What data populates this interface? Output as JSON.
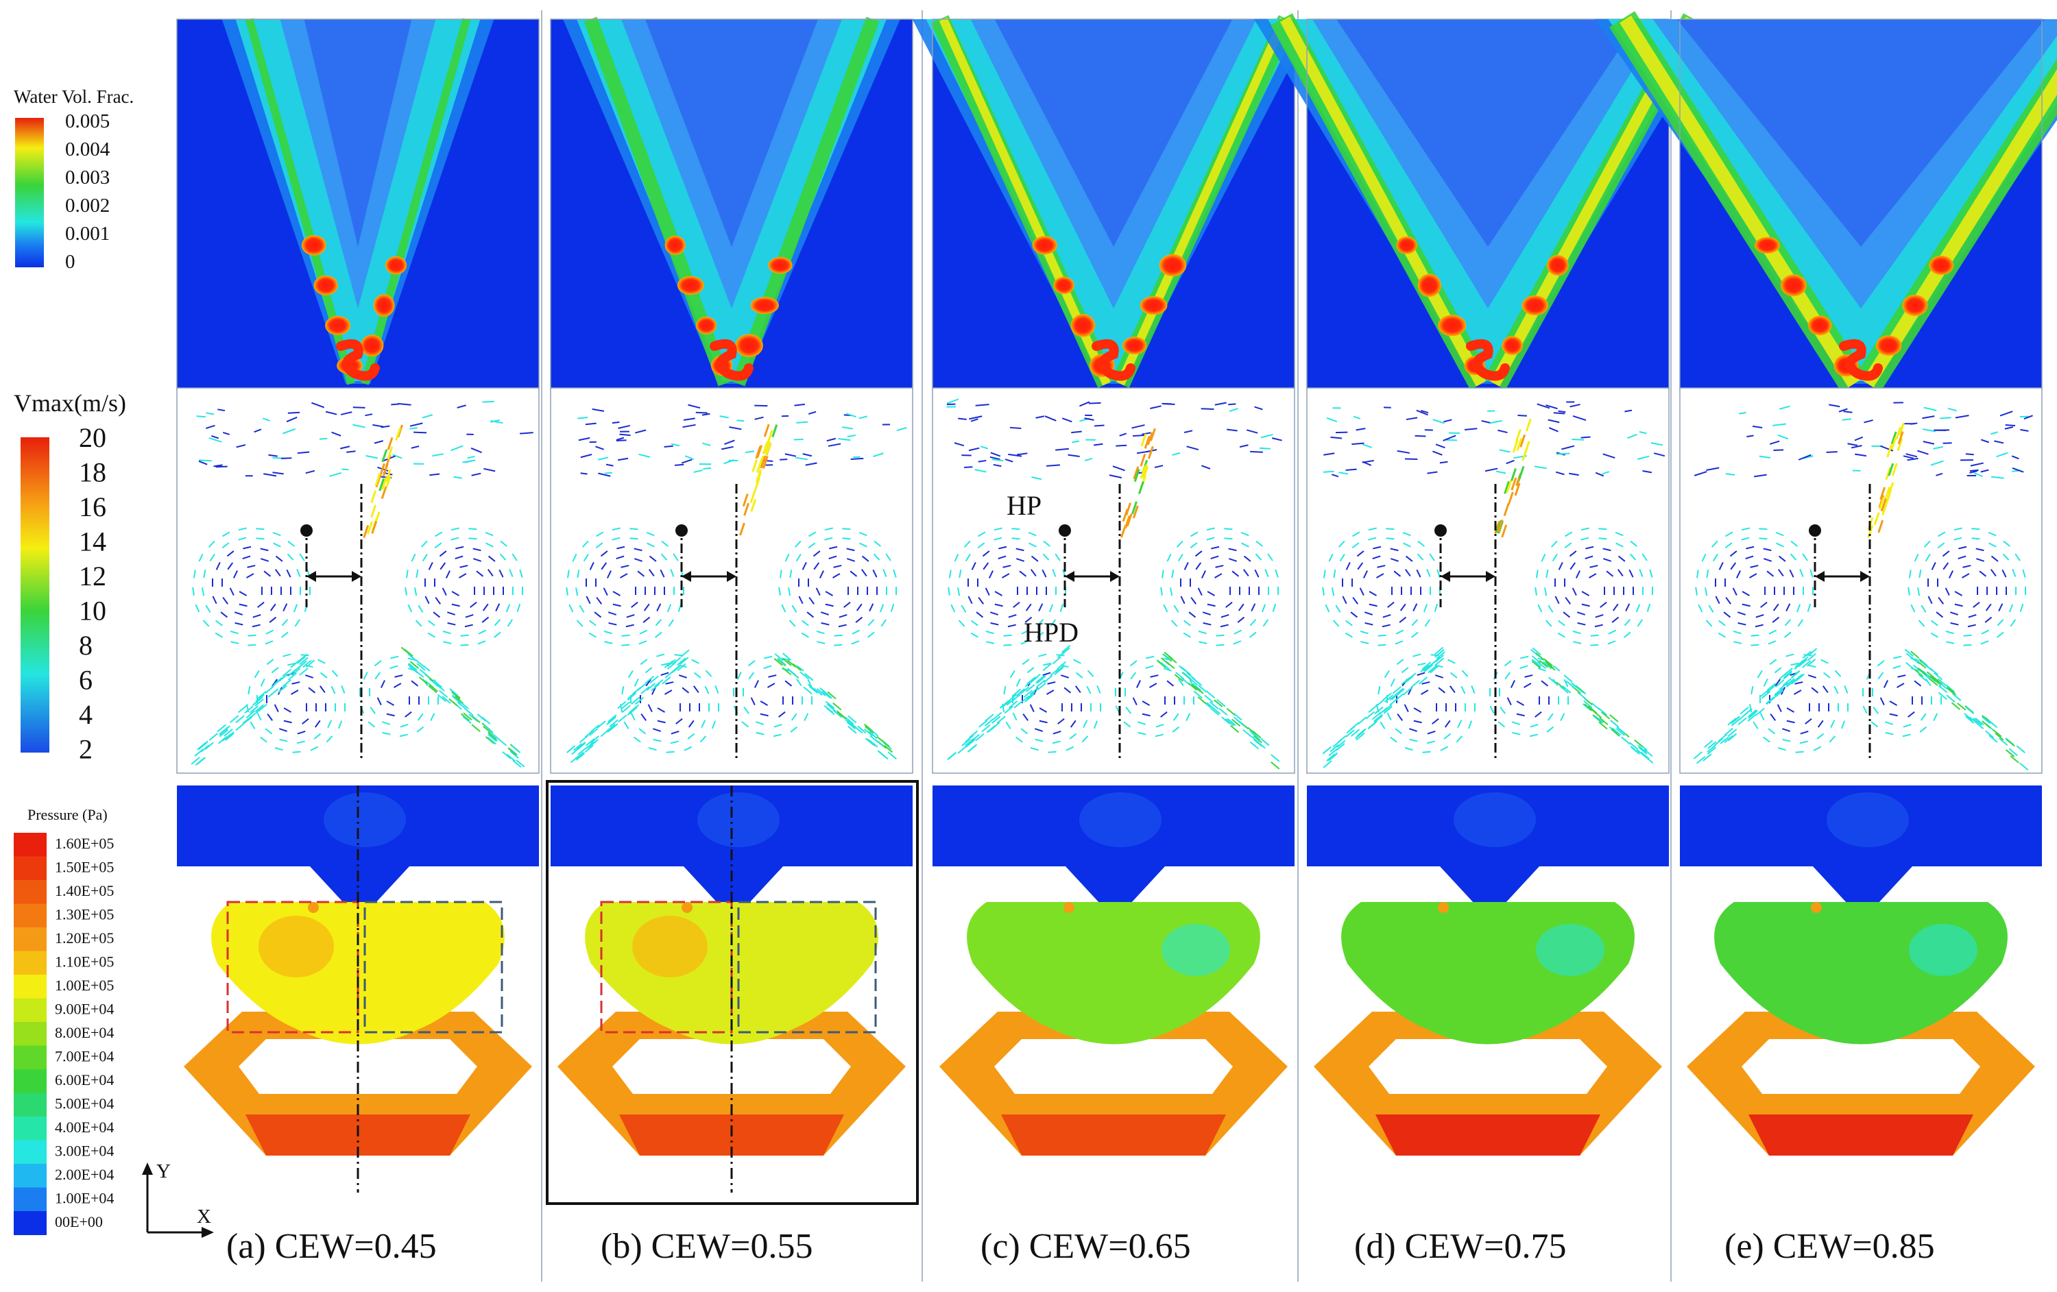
{
  "legends": {
    "water": {
      "title": "Water Vol. Frac.",
      "ticks": [
        "0.005",
        "0.004",
        "0.003",
        "0.002",
        "0.001",
        "0"
      ]
    },
    "velocity": {
      "title": "Vmax(m/s)",
      "ticks": [
        "20",
        "18",
        "16",
        "14",
        "12",
        "10",
        "8",
        "6",
        "4",
        "2"
      ]
    },
    "pressure": {
      "title": "Pressure (Pa)",
      "ticks": [
        "1.60E+05",
        "1.50E+05",
        "1.40E+05",
        "1.30E+05",
        "1.20E+05",
        "1.10E+05",
        "1.00E+05",
        "9.00E+04",
        "8.00E+04",
        "7.00E+04",
        "6.00E+04",
        "5.00E+04",
        "4.00E+04",
        "3.00E+04",
        "2.00E+04",
        "1.00E+04",
        "00E+00"
      ]
    }
  },
  "axes": {
    "x": "X",
    "y": "Y"
  },
  "annotations": {
    "hp": "HP",
    "hpd": "HPD"
  },
  "panels": [
    {
      "caption": "(a) CEW=0.45"
    },
    {
      "caption": "(b) CEW=0.55"
    },
    {
      "caption": "(c) CEW=0.65"
    },
    {
      "caption": "(d) CEW=0.75"
    },
    {
      "caption": "(e) CEW=0.85"
    }
  ],
  "colors": {
    "background_blue": "#0a2fe6",
    "high_red": "#e8200c",
    "yellow": "#f5ee12",
    "green": "#3ad43a",
    "cyan": "#25e6e0",
    "orange": "#f59a14",
    "box_red": "#d93030",
    "box_blue": "#3c5a7a"
  }
}
